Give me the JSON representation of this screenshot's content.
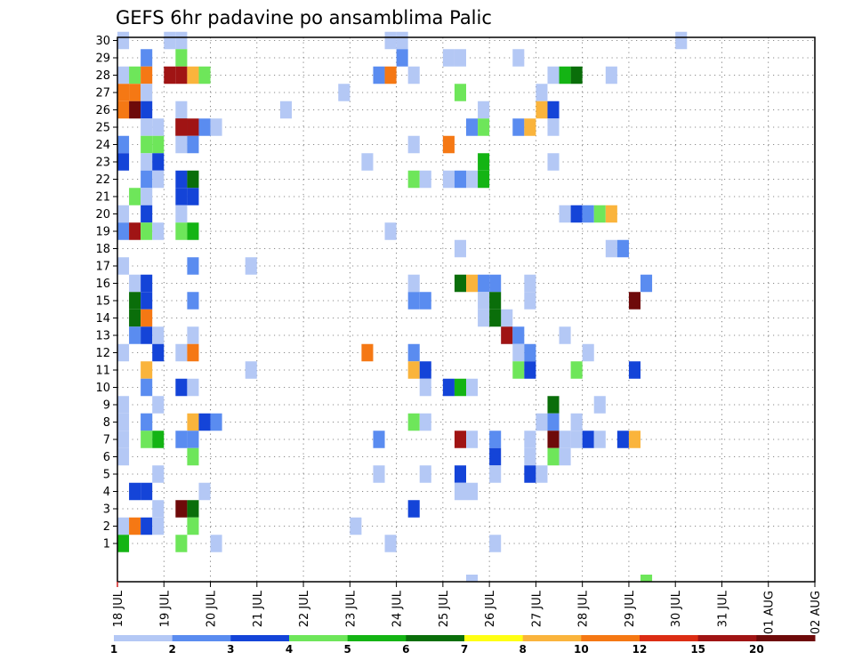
{
  "chart_data": {
    "type": "heatmap",
    "title": "GEFS 6hr padavine po ansamblima Palic",
    "xlabel": "",
    "ylabel": "",
    "x_ticks": [
      "18 JUL",
      "19 JUL",
      "20 JUL",
      "21 JUL",
      "22 JUL",
      "23 JUL",
      "24 JUL",
      "25 JUL",
      "26 JUL",
      "27 JUL",
      "28 JUL",
      "29 JUL",
      "30 JUL",
      "31 JUL",
      "01 AUG",
      "02 AUG"
    ],
    "y_ticks": [
      "1",
      "2",
      "3",
      "4",
      "5",
      "6",
      "7",
      "8",
      "9",
      "10",
      "11",
      "12",
      "13",
      "14",
      "15",
      "16",
      "17",
      "18",
      "19",
      "20",
      "21",
      "22",
      "23",
      "24",
      "25",
      "26",
      "27",
      "28",
      "29",
      "30"
    ],
    "steps_per_day": 4,
    "n_steps": 60,
    "n_members": 30,
    "grid": true,
    "colorbar": {
      "labels": [
        "1",
        "2",
        "3",
        "4",
        "5",
        "6",
        "7",
        "8",
        "10",
        "12",
        "15",
        "20"
      ],
      "colors": [
        "#b4c8f5",
        "#5a8cf0",
        "#1444d8",
        "#6ee65a",
        "#14b414",
        "#0a6e0a",
        "#ffff14",
        "#fab43c",
        "#f57814",
        "#dc2d14",
        "#a01414",
        "#6e0a0a"
      ]
    },
    "cells": [
      [
        0,
        30,
        1
      ],
      [
        4,
        30,
        1
      ],
      [
        5,
        30,
        1
      ],
      [
        23,
        30,
        1
      ],
      [
        24,
        30,
        1
      ],
      [
        48,
        30,
        1
      ],
      [
        2,
        29,
        2
      ],
      [
        5,
        29,
        4
      ],
      [
        24,
        29,
        2
      ],
      [
        28,
        29,
        1
      ],
      [
        29,
        29,
        1
      ],
      [
        34,
        29,
        1
      ],
      [
        0,
        28,
        1
      ],
      [
        1,
        28,
        4
      ],
      [
        2,
        28,
        10
      ],
      [
        4,
        28,
        15
      ],
      [
        5,
        28,
        15
      ],
      [
        6,
        28,
        8
      ],
      [
        7,
        28,
        4
      ],
      [
        22,
        28,
        2
      ],
      [
        23,
        28,
        10
      ],
      [
        25,
        28,
        1
      ],
      [
        37,
        28,
        1
      ],
      [
        38,
        28,
        5
      ],
      [
        39,
        28,
        6
      ],
      [
        42,
        28,
        1
      ],
      [
        0,
        27,
        10
      ],
      [
        1,
        27,
        11
      ],
      [
        2,
        27,
        1
      ],
      [
        19,
        27,
        1
      ],
      [
        29,
        27,
        4
      ],
      [
        36,
        27,
        1
      ],
      [
        0,
        26,
        11
      ],
      [
        1,
        26,
        20
      ],
      [
        2,
        26,
        3
      ],
      [
        5,
        26,
        1
      ],
      [
        14,
        26,
        1
      ],
      [
        31,
        26,
        1
      ],
      [
        36,
        26,
        8
      ],
      [
        37,
        26,
        3
      ],
      [
        2,
        25,
        1
      ],
      [
        3,
        25,
        1
      ],
      [
        5,
        25,
        20
      ],
      [
        5,
        25,
        15
      ],
      [
        6,
        25,
        15
      ],
      [
        7,
        25,
        2
      ],
      [
        8,
        25,
        1
      ],
      [
        30,
        25,
        2
      ],
      [
        31,
        25,
        4
      ],
      [
        34,
        25,
        2
      ],
      [
        35,
        25,
        8
      ],
      [
        37,
        25,
        1
      ],
      [
        0,
        24,
        2
      ],
      [
        2,
        24,
        4
      ],
      [
        3,
        24,
        4
      ],
      [
        5,
        24,
        1
      ],
      [
        6,
        24,
        2
      ],
      [
        25,
        24,
        1
      ],
      [
        28,
        24,
        11
      ],
      [
        0,
        23,
        3
      ],
      [
        2,
        23,
        1
      ],
      [
        3,
        23,
        3
      ],
      [
        21,
        23,
        1
      ],
      [
        31,
        23,
        5
      ],
      [
        37,
        23,
        1
      ],
      [
        2,
        22,
        2
      ],
      [
        3,
        22,
        1
      ],
      [
        5,
        22,
        3
      ],
      [
        6,
        22,
        6
      ],
      [
        25,
        22,
        4
      ],
      [
        26,
        22,
        1
      ],
      [
        28,
        22,
        1
      ],
      [
        29,
        22,
        2
      ],
      [
        30,
        22,
        1
      ],
      [
        31,
        22,
        5
      ],
      [
        1,
        21,
        4
      ],
      [
        2,
        21,
        1
      ],
      [
        5,
        21,
        3
      ],
      [
        6,
        21,
        3
      ],
      [
        0,
        20,
        1
      ],
      [
        2,
        20,
        3
      ],
      [
        5,
        20,
        1
      ],
      [
        38,
        20,
        1
      ],
      [
        39,
        20,
        3
      ],
      [
        40,
        20,
        2
      ],
      [
        41,
        20,
        4
      ],
      [
        42,
        20,
        8
      ],
      [
        0,
        19,
        2
      ],
      [
        1,
        19,
        15
      ],
      [
        2,
        19,
        4
      ],
      [
        3,
        19,
        1
      ],
      [
        5,
        19,
        4
      ],
      [
        6,
        19,
        5
      ],
      [
        23,
        19,
        1
      ],
      [
        29,
        18,
        1
      ],
      [
        42,
        18,
        1
      ],
      [
        43,
        18,
        2
      ],
      [
        0,
        17,
        1
      ],
      [
        6,
        17,
        2
      ],
      [
        11,
        17,
        1
      ],
      [
        1,
        16,
        1
      ],
      [
        2,
        16,
        3
      ],
      [
        25,
        16,
        1
      ],
      [
        29,
        16,
        6
      ],
      [
        30,
        16,
        8
      ],
      [
        31,
        16,
        2
      ],
      [
        32,
        16,
        2
      ],
      [
        35,
        16,
        1
      ],
      [
        45,
        16,
        2
      ],
      [
        1,
        15,
        6
      ],
      [
        2,
        15,
        3
      ],
      [
        6,
        15,
        2
      ],
      [
        25,
        15,
        2
      ],
      [
        26,
        15,
        2
      ],
      [
        31,
        15,
        1
      ],
      [
        32,
        15,
        6
      ],
      [
        35,
        15,
        1
      ],
      [
        44,
        15,
        20
      ],
      [
        1,
        14,
        6
      ],
      [
        2,
        14,
        10
      ],
      [
        31,
        14,
        1
      ],
      [
        33,
        14,
        1
      ],
      [
        32,
        14,
        6
      ],
      [
        1,
        13,
        2
      ],
      [
        2,
        13,
        3
      ],
      [
        3,
        13,
        1
      ],
      [
        6,
        13,
        1
      ],
      [
        33,
        13,
        1
      ],
      [
        33,
        13,
        15
      ],
      [
        34,
        13,
        2
      ],
      [
        38,
        13,
        1
      ],
      [
        0,
        12,
        1
      ],
      [
        3,
        12,
        3
      ],
      [
        5,
        12,
        1
      ],
      [
        6,
        12,
        10
      ],
      [
        21,
        12,
        10
      ],
      [
        25,
        12,
        2
      ],
      [
        34,
        12,
        1
      ],
      [
        35,
        12,
        2
      ],
      [
        40,
        12,
        1
      ],
      [
        2,
        11,
        8
      ],
      [
        11,
        11,
        1
      ],
      [
        25,
        11,
        8
      ],
      [
        26,
        11,
        3
      ],
      [
        34,
        11,
        4
      ],
      [
        35,
        11,
        3
      ],
      [
        39,
        11,
        4
      ],
      [
        44,
        11,
        3
      ],
      [
        2,
        10,
        2
      ],
      [
        5,
        10,
        3
      ],
      [
        6,
        10,
        1
      ],
      [
        26,
        10,
        1
      ],
      [
        28,
        10,
        3
      ],
      [
        29,
        10,
        5
      ],
      [
        30,
        10,
        1
      ],
      [
        0,
        9,
        1
      ],
      [
        3,
        9,
        1
      ],
      [
        37,
        9,
        6
      ],
      [
        41,
        9,
        1
      ],
      [
        0,
        8,
        1
      ],
      [
        2,
        8,
        1
      ],
      [
        2,
        8,
        2
      ],
      [
        6,
        8,
        8
      ],
      [
        7,
        8,
        3
      ],
      [
        8,
        8,
        2
      ],
      [
        25,
        8,
        4
      ],
      [
        26,
        8,
        1
      ],
      [
        36,
        8,
        1
      ],
      [
        37,
        8,
        2
      ],
      [
        39,
        8,
        1
      ],
      [
        0,
        7,
        1
      ],
      [
        2,
        7,
        4
      ],
      [
        3,
        7,
        5
      ],
      [
        5,
        7,
        2
      ],
      [
        6,
        7,
        2
      ],
      [
        22,
        7,
        2
      ],
      [
        29,
        7,
        15
      ],
      [
        30,
        7,
        1
      ],
      [
        32,
        7,
        2
      ],
      [
        35,
        7,
        1
      ],
      [
        37,
        7,
        20
      ],
      [
        38,
        7,
        1
      ],
      [
        39,
        7,
        1
      ],
      [
        40,
        7,
        3
      ],
      [
        41,
        7,
        1
      ],
      [
        43,
        7,
        3
      ],
      [
        44,
        7,
        8
      ],
      [
        0,
        6,
        1
      ],
      [
        6,
        6,
        4
      ],
      [
        32,
        6,
        3
      ],
      [
        35,
        6,
        1
      ],
      [
        37,
        6,
        4
      ],
      [
        38,
        6,
        1
      ],
      [
        3,
        5,
        1
      ],
      [
        22,
        5,
        1
      ],
      [
        26,
        5,
        1
      ],
      [
        29,
        5,
        3
      ],
      [
        32,
        5,
        1
      ],
      [
        35,
        5,
        3
      ],
      [
        36,
        5,
        1
      ],
      [
        1,
        4,
        3
      ],
      [
        2,
        4,
        3
      ],
      [
        7,
        4,
        1
      ],
      [
        29,
        4,
        1
      ],
      [
        30,
        4,
        1
      ],
      [
        3,
        3,
        1
      ],
      [
        5,
        3,
        20
      ],
      [
        6,
        3,
        6
      ],
      [
        25,
        3,
        3
      ],
      [
        0,
        2,
        1
      ],
      [
        1,
        2,
        10
      ],
      [
        2,
        2,
        3
      ],
      [
        3,
        2,
        1
      ],
      [
        6,
        2,
        4
      ],
      [
        20,
        2,
        1
      ],
      [
        0,
        1,
        5
      ],
      [
        5,
        1,
        4
      ],
      [
        8,
        1,
        1
      ],
      [
        23,
        1,
        1
      ],
      [
        32,
        1,
        1
      ],
      [
        30,
        0,
        1
      ],
      [
        45,
        0,
        4
      ]
    ]
  }
}
